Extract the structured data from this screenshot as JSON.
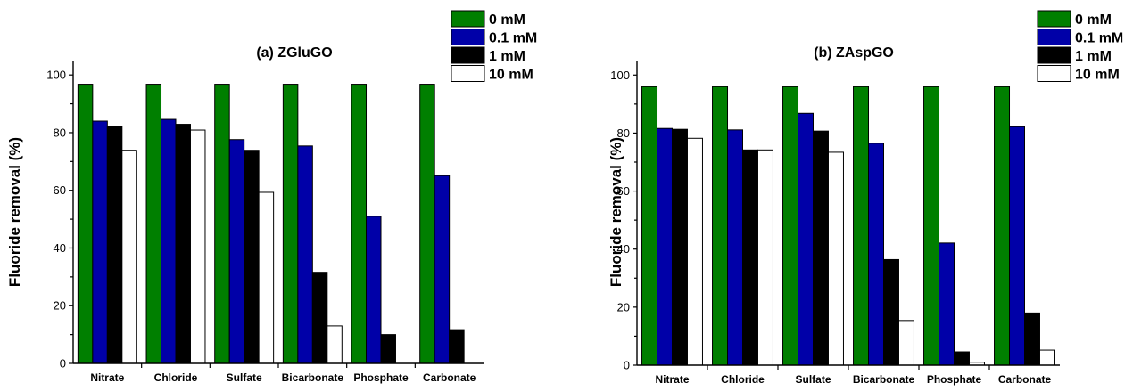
{
  "chart_data": [
    {
      "type": "bar",
      "title": "(a) ZGluGO",
      "ylabel": "Fluoride removal (%)",
      "xlabel": "",
      "ylim": [
        0,
        105
      ],
      "yticks": [
        0,
        20,
        40,
        60,
        80,
        100
      ],
      "categories": [
        "Nitrate",
        "Chloride",
        "Sulfate",
        "Bicarbonate",
        "Phosphate",
        "Carbonate"
      ],
      "legend_position": "top-right",
      "series": [
        {
          "name": "0 mM",
          "color": "#007f00",
          "values": [
            96.8,
            96.8,
            96.8,
            96.8,
            96.8,
            96.8
          ]
        },
        {
          "name": "0.1 mM",
          "color": "#0000a8",
          "values": [
            84.0,
            84.6,
            77.6,
            75.4,
            51.0,
            65.1
          ]
        },
        {
          "name": "1 mM",
          "color": "#000000",
          "values": [
            82.2,
            82.9,
            73.9,
            31.6,
            10.0,
            11.7
          ]
        },
        {
          "name": "10 mM",
          "color": "#ffffff",
          "values": [
            73.9,
            80.9,
            59.3,
            13.0,
            0,
            0
          ]
        }
      ]
    },
    {
      "type": "bar",
      "title": "(b) ZAspGO",
      "ylabel": "Fluoride removal (%)",
      "xlabel": "",
      "ylim": [
        0,
        105
      ],
      "yticks": [
        0,
        20,
        40,
        60,
        80,
        100
      ],
      "categories": [
        "Nitrate",
        "Chloride",
        "Sulfate",
        "Bicarbonate",
        "Phosphate",
        "Carbonate"
      ],
      "legend_position": "top-right",
      "series": [
        {
          "name": "0  mM",
          "color": "#007f00",
          "values": [
            96.0,
            96.0,
            96.0,
            96.0,
            96.0,
            96.0
          ]
        },
        {
          "name": "0.1 mM",
          "color": "#0000a8",
          "values": [
            81.6,
            81.1,
            86.8,
            76.5,
            42.1,
            82.2
          ]
        },
        {
          "name": "1 mM",
          "color": "#000000",
          "values": [
            81.3,
            74.2,
            80.7,
            36.4,
            4.6,
            18.0
          ]
        },
        {
          "name": "10 mM",
          "color": "#ffffff",
          "values": [
            78.2,
            74.2,
            73.4,
            15.4,
            1.0,
            5.2
          ]
        }
      ]
    }
  ]
}
